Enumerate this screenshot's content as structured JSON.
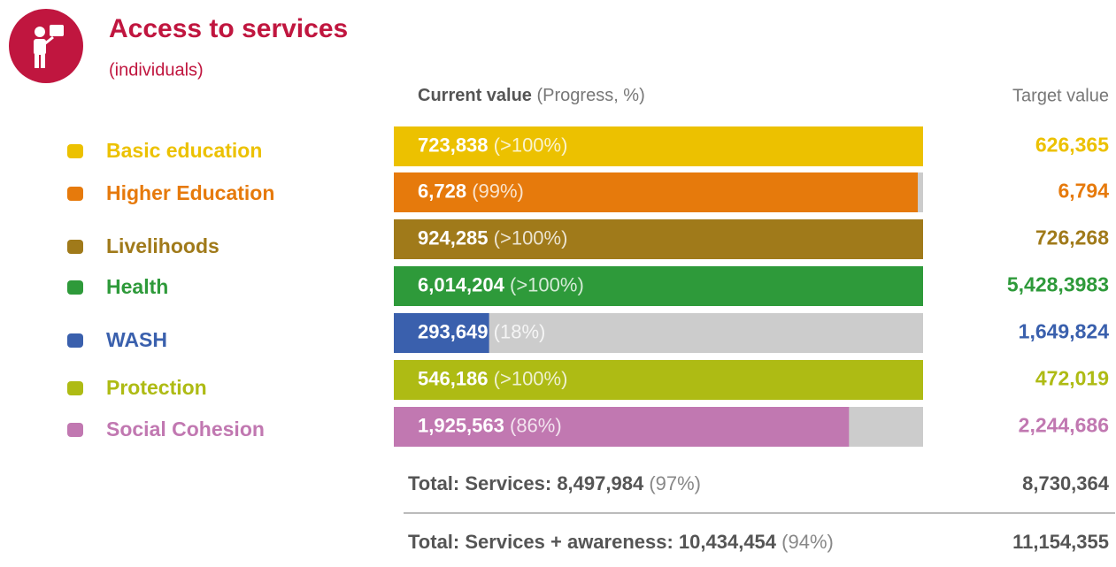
{
  "chart_data": {
    "type": "progress",
    "title": "Access to services",
    "subtitle": "(individuals)",
    "header_current": "Current value",
    "header_current_note": "(Progress, %)",
    "header_target": "Target value",
    "xlim": [
      0,
      100
    ],
    "rows": [
      {
        "label": "Basic education",
        "current": "723,838",
        "progress": {
          "value": 100,
          "label": "(>100%)"
        },
        "target": "626,365",
        "color": "#ecc100"
      },
      {
        "label": "Higher Education",
        "current": "6,728",
        "progress": {
          "value": 99,
          "label": "(99%)"
        },
        "target": "6,794",
        "color": "#e67a0c"
      },
      {
        "label": "Livelihoods",
        "current": "924,285",
        "progress": {
          "value": 100,
          "label": "(>100%)"
        },
        "target": "726,268",
        "color": "#a07a1a"
      },
      {
        "label": "Health",
        "current": "6,014,204",
        "progress": {
          "value": 100,
          "label": "(>100%)"
        },
        "target": "5,428,3983",
        "color": "#2e9a3a"
      },
      {
        "label": "WASH",
        "current": "293,649",
        "progress": {
          "value": 18,
          "label": "(18%)"
        },
        "target": "1,649,824",
        "color": "#3a60ad"
      },
      {
        "label": "Protection",
        "current": "546,186",
        "progress": {
          "value": 100,
          "label": "(>100%)"
        },
        "target": "472,019",
        "color": "#aebb14"
      },
      {
        "label": "Social Cohesion",
        "current": "1,925,563",
        "progress": {
          "value": 86,
          "label": "(86%)"
        },
        "target": "2,244,686",
        "color": "#c178b1"
      }
    ],
    "totals": [
      {
        "label": "Total:  Services: 8,497,984",
        "progress": "(97%)",
        "target": "8,730,364"
      },
      {
        "label": "Total:  Services + awareness: 10,434,454",
        "progress": "(94%)",
        "target": "11,154,355"
      }
    ]
  }
}
